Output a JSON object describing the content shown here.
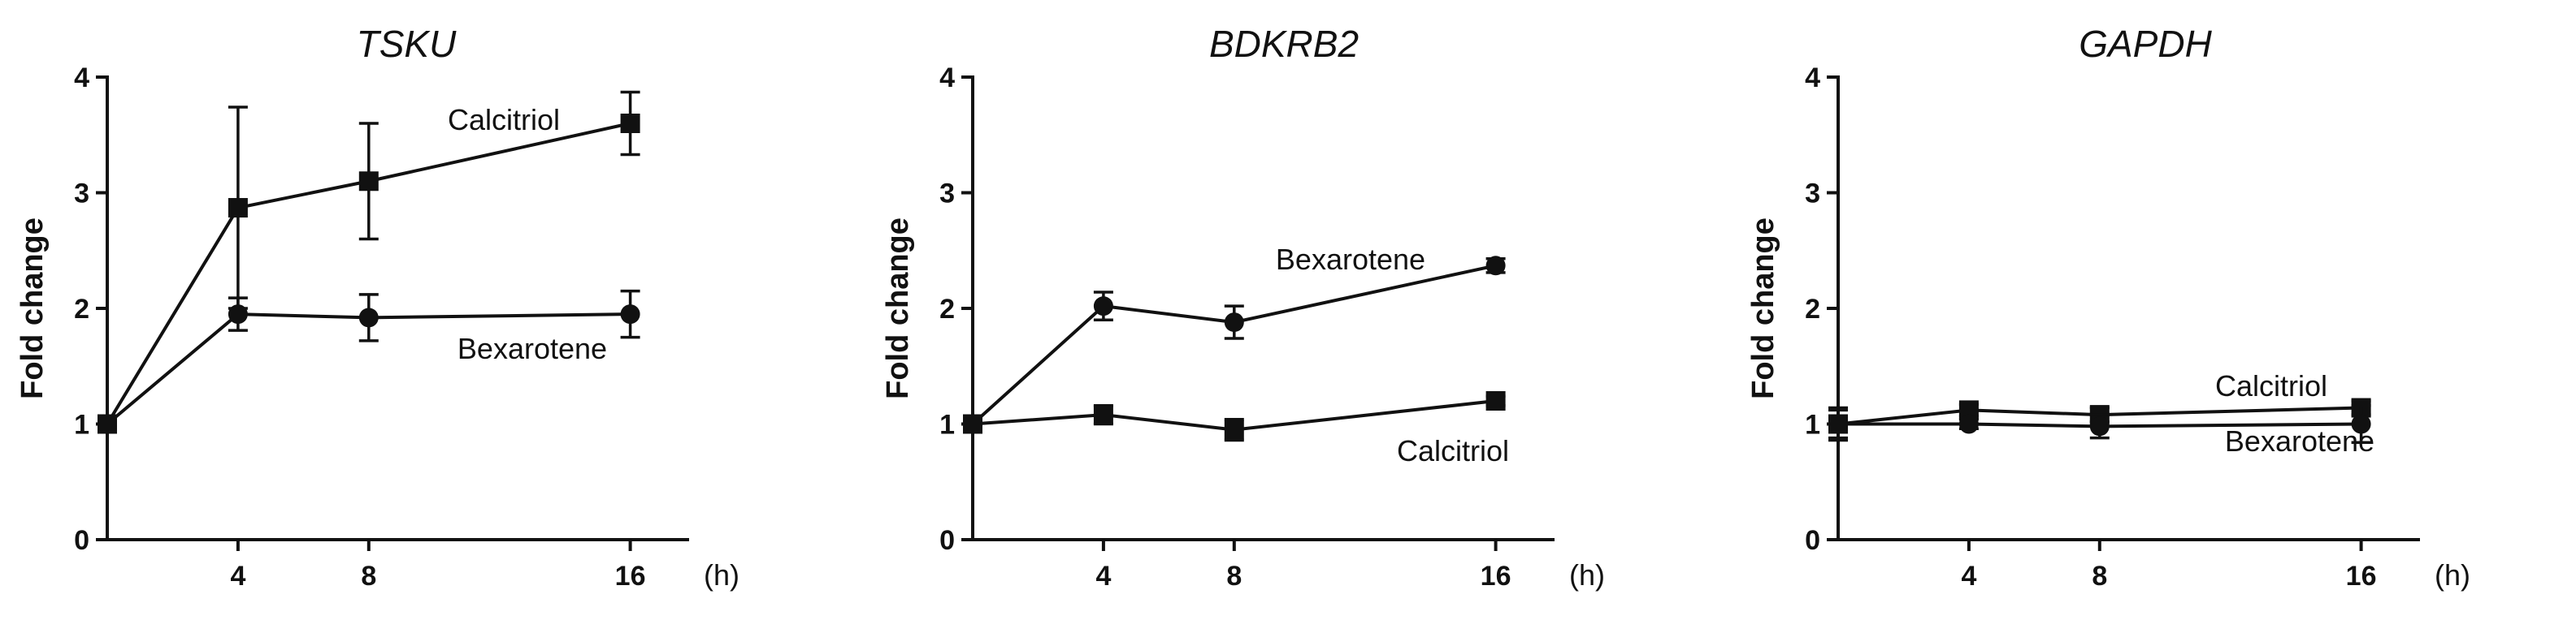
{
  "chart_data": [
    {
      "type": "line",
      "title": "TSKU",
      "ylabel": "Fold change",
      "x_unit": "(h)",
      "x_ticks": [
        4,
        8,
        16
      ],
      "y_ticks": [
        0,
        1,
        2,
        3,
        4
      ],
      "ylim": [
        0,
        4
      ],
      "x": [
        0,
        4,
        8,
        16
      ],
      "series": [
        {
          "name": "Calcitriol",
          "marker": "square",
          "values": [
            1.0,
            2.87,
            3.1,
            3.6
          ],
          "err": [
            0.0,
            0.87,
            0.5,
            0.27
          ]
        },
        {
          "name": "Bexarotene",
          "marker": "circle",
          "values": [
            1.0,
            1.95,
            1.92,
            1.95
          ],
          "err": [
            0.0,
            0.14,
            0.2,
            0.2
          ]
        }
      ]
    },
    {
      "type": "line",
      "title": "BDKRB2",
      "ylabel": "Fold change",
      "x_unit": "(h)",
      "x_ticks": [
        4,
        8,
        16
      ],
      "y_ticks": [
        0,
        1,
        2,
        3,
        4
      ],
      "ylim": [
        0,
        4
      ],
      "x": [
        0,
        4,
        8,
        16
      ],
      "series": [
        {
          "name": "Bexarotene",
          "marker": "circle",
          "values": [
            1.0,
            2.02,
            1.88,
            2.37
          ],
          "err": [
            0.0,
            0.12,
            0.14,
            0.06
          ]
        },
        {
          "name": "Calcitriol",
          "marker": "square",
          "values": [
            1.0,
            1.08,
            0.95,
            1.2
          ],
          "err": [
            0.0,
            0.08,
            0.09,
            0.04
          ]
        }
      ]
    },
    {
      "type": "line",
      "title": "GAPDH",
      "ylabel": "Fold change",
      "x_unit": "(h)",
      "x_ticks": [
        4,
        8,
        16
      ],
      "y_ticks": [
        0,
        1,
        2,
        3,
        4
      ],
      "ylim": [
        0,
        4
      ],
      "x": [
        0,
        4,
        8,
        16
      ],
      "series": [
        {
          "name": "Calcitriol",
          "marker": "square",
          "values": [
            1.0,
            1.12,
            1.08,
            1.14
          ],
          "err": [
            0.14,
            0.05,
            0.06,
            0.06
          ]
        },
        {
          "name": "Bexarotene",
          "marker": "circle",
          "values": [
            1.0,
            1.0,
            0.98,
            1.0
          ],
          "err": [
            0.12,
            0.04,
            0.1,
            0.16
          ]
        }
      ]
    }
  ]
}
